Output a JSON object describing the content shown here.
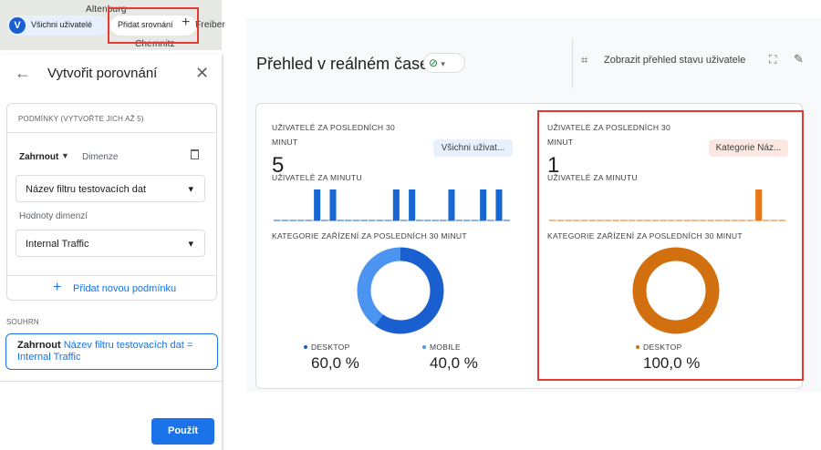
{
  "map": {
    "places": [
      "Altenburg",
      "Chemnitz",
      "Freiber"
    ]
  },
  "topbar": {
    "avatar": "V",
    "segment": "Všichni uživatelé",
    "add_comparison": "Přidat srovnání"
  },
  "panel": {
    "title": "Vytvořit porovnání",
    "conditions_header": "PODMÍNKY (VYTVOŘTE JICH AŽ 5)",
    "include": "Zahrnout",
    "dimension": "Dimenze",
    "dimension_select": "Název filtru testovacích dat",
    "values_label": "Hodnoty dimenzí",
    "value_select": "Internal Traffic",
    "add_condition": "Přidat novou podmínku",
    "summary_label": "SOUHRN",
    "summary_include": "Zahrnout",
    "summary_text": "Název filtru testovacích dat = Internal Traffic",
    "apply": "Použít"
  },
  "main": {
    "title": "Přehled v reálném čase",
    "user_snapshot": "Zobrazit přehled stavu uživatele"
  },
  "cards": [
    {
      "users_label": "UŽIVATELÉ ZA POSLEDNÍCH 30 MINUT",
      "segment": "Všichni uživat...",
      "users": 5,
      "per_minute_label": "UŽIVATELÉ ZA MINUTU",
      "color": "#1967d2",
      "per_minute": [
        0,
        0,
        0,
        0,
        0,
        1,
        0,
        1,
        0,
        0,
        0,
        0,
        0,
        0,
        0,
        1,
        0,
        1,
        0,
        0,
        0,
        0,
        1,
        0,
        0,
        0,
        1,
        0,
        1,
        0
      ],
      "device_label": "KATEGORIE ZAŘÍZENÍ ZA POSLEDNÍCH 30 MINUT",
      "devices": [
        {
          "name": "DESKTOP",
          "value": 60.0,
          "label": "60,0 %",
          "color": "#1a5fd0"
        },
        {
          "name": "MOBILE",
          "value": 40.0,
          "label": "40,0 %",
          "color": "#4b94ef"
        }
      ]
    },
    {
      "users_label": "UŽIVATELÉ ZA POSLEDNÍCH 30 MINUT",
      "segment": "Kategorie Náz...",
      "users": 1,
      "per_minute_label": "UŽIVATELÉ ZA MINUTU",
      "color": "#e8761a",
      "per_minute": [
        0,
        0,
        0,
        0,
        0,
        0,
        0,
        0,
        0,
        0,
        0,
        0,
        0,
        0,
        0,
        0,
        0,
        0,
        0,
        0,
        0,
        0,
        0,
        0,
        0,
        0,
        1,
        0,
        0,
        0
      ],
      "device_label": "KATEGORIE ZAŘÍZENÍ ZA POSLEDNÍCH 30 MINUT",
      "devices": [
        {
          "name": "DESKTOP",
          "value": 100.0,
          "label": "100,0 %",
          "color": "#d2700f"
        }
      ]
    }
  ]
}
